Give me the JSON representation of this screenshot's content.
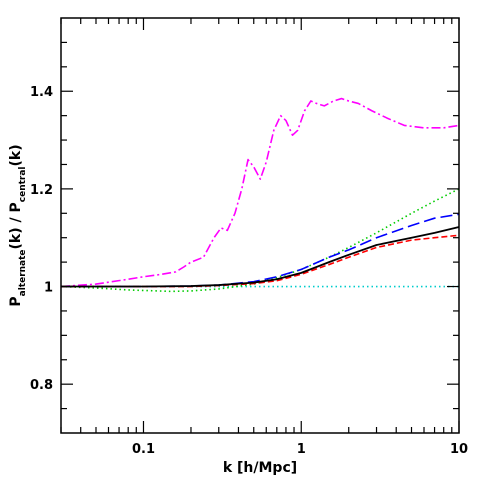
{
  "chart_data": {
    "type": "line",
    "xlabel": "k [h/Mpc]",
    "ylabel": {
      "pre": "P",
      "sub1": "alternate",
      "mid": "(k) / P",
      "sub2": "central",
      "post": "(k)"
    },
    "xscale": "log",
    "xlim": [
      0.03,
      10
    ],
    "ylim": [
      0.7,
      1.55
    ],
    "xticks": [
      {
        "value": 0.1,
        "label": "0.1"
      },
      {
        "value": 1,
        "label": "1"
      },
      {
        "value": 10,
        "label": "10"
      }
    ],
    "yticks": [
      {
        "value": 0.8,
        "label": "0.8"
      },
      {
        "value": 1.0,
        "label": "1"
      },
      {
        "value": 1.2,
        "label": "1.2"
      },
      {
        "value": 1.4,
        "label": "1.4"
      }
    ],
    "grid": false,
    "series": [
      {
        "color": "#00cccc",
        "style": "dotted",
        "x": [
          0.03,
          0.1,
          1,
          10
        ],
        "y": [
          1.0,
          1.0,
          1.0,
          1.0
        ]
      },
      {
        "color": "#ff00ff",
        "style": "dashdot",
        "x": [
          0.03,
          0.05,
          0.08,
          0.1,
          0.13,
          0.16,
          0.18,
          0.2,
          0.24,
          0.28,
          0.31,
          0.34,
          0.38,
          0.42,
          0.46,
          0.5,
          0.55,
          0.6,
          0.67,
          0.74,
          0.8,
          0.88,
          0.95,
          1.05,
          1.15,
          1.25,
          1.4,
          1.6,
          1.8,
          2.0,
          2.3,
          2.8,
          3.5,
          4.5,
          6.0,
          8.0,
          10.0
        ],
        "y": [
          1.0,
          1.005,
          1.015,
          1.02,
          1.025,
          1.03,
          1.04,
          1.05,
          1.06,
          1.1,
          1.12,
          1.115,
          1.15,
          1.2,
          1.26,
          1.245,
          1.22,
          1.255,
          1.32,
          1.35,
          1.34,
          1.31,
          1.32,
          1.36,
          1.38,
          1.375,
          1.37,
          1.38,
          1.385,
          1.38,
          1.375,
          1.36,
          1.345,
          1.33,
          1.325,
          1.325,
          1.33
        ]
      },
      {
        "color": "#00cc00",
        "style": "dotted",
        "x": [
          0.03,
          0.05,
          0.08,
          0.1,
          0.15,
          0.2,
          0.3,
          0.5,
          0.7,
          1.0,
          1.5,
          2.0,
          3.0,
          5.0,
          7.0,
          10.0
        ],
        "y": [
          1.0,
          0.997,
          0.993,
          0.992,
          0.99,
          0.991,
          0.995,
          1.005,
          1.018,
          1.035,
          1.06,
          1.08,
          1.11,
          1.15,
          1.175,
          1.2
        ]
      },
      {
        "color": "#0000ff",
        "style": "longdash",
        "x": [
          0.03,
          0.1,
          0.2,
          0.3,
          0.5,
          0.7,
          1.0,
          1.5,
          2.0,
          3.0,
          5.0,
          7.0,
          10.0
        ],
        "y": [
          1.0,
          1.0,
          1.001,
          1.003,
          1.01,
          1.02,
          1.035,
          1.06,
          1.075,
          1.1,
          1.125,
          1.14,
          1.148
        ]
      },
      {
        "color": "#ff0000",
        "style": "dashed",
        "x": [
          0.03,
          0.1,
          0.2,
          0.3,
          0.5,
          0.7,
          1.0,
          1.5,
          2.0,
          3.0,
          5.0,
          7.0,
          10.0
        ],
        "y": [
          1.0,
          1.0,
          1.0,
          1.002,
          1.006,
          1.012,
          1.025,
          1.045,
          1.06,
          1.08,
          1.095,
          1.1,
          1.105
        ]
      },
      {
        "color": "#000000",
        "style": "solid",
        "x": [
          0.03,
          0.1,
          0.2,
          0.3,
          0.5,
          0.7,
          1.0,
          1.5,
          2.0,
          3.0,
          5.0,
          7.0,
          10.0
        ],
        "y": [
          1.0,
          1.0,
          1.001,
          1.003,
          1.008,
          1.015,
          1.028,
          1.05,
          1.065,
          1.085,
          1.1,
          1.11,
          1.122
        ]
      }
    ]
  }
}
